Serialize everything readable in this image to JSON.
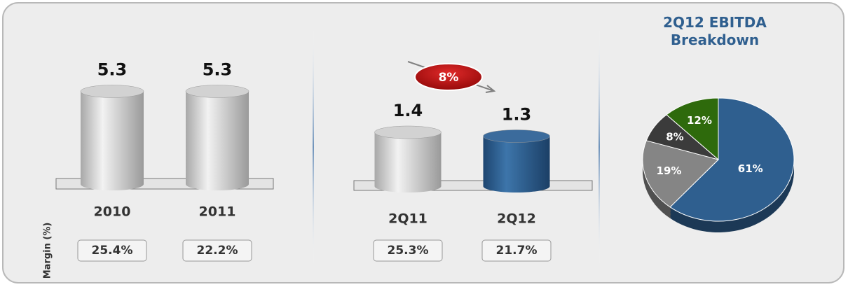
{
  "chart_data": [
    {
      "type": "bar",
      "categories": [
        "2010",
        "2011"
      ],
      "values": [
        5.3,
        5.3
      ],
      "colors": [
        "gray",
        "gray"
      ],
      "margin_title": "Margin (%)",
      "margins": [
        "25.4%",
        "22.2%"
      ]
    },
    {
      "type": "bar",
      "categories": [
        "2Q11",
        "2Q12"
      ],
      "values": [
        1.4,
        1.3
      ],
      "colors": [
        "gray",
        "blue"
      ],
      "annotation": "8%",
      "margins": [
        "25.3%",
        "21.7%"
      ]
    },
    {
      "type": "pie",
      "title": "2Q12 EBITDA Breakdown",
      "values": [
        61,
        19,
        8,
        12
      ],
      "value_labels": [
        "61%",
        "19%",
        "8%",
        "12%"
      ],
      "colors": [
        "#2f5f8f",
        "#858585",
        "#3b3b3b",
        "#2e6a0c"
      ]
    }
  ]
}
